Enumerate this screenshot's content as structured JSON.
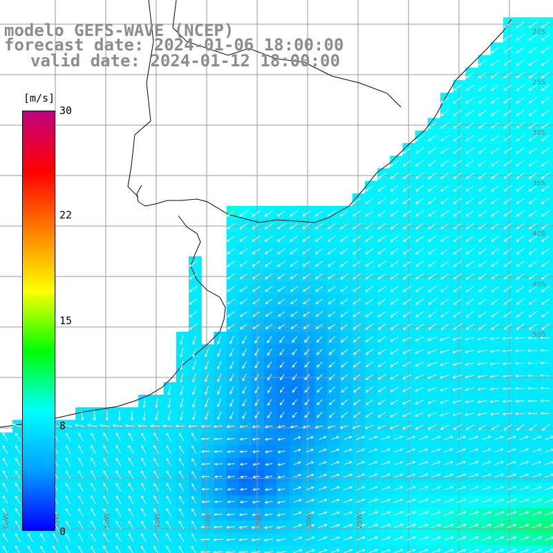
{
  "title": {
    "model": "modelo GEFS-WAVE (NCEP)",
    "forecast": "forecast date: 2024-01-06 18:00:00",
    "valid": "valid date: 2024-01-12 18:00:00"
  },
  "colorbar": {
    "unit": "[m/s]",
    "ticks": [
      "30",
      "22",
      "15",
      "8",
      "0"
    ],
    "range": [
      0,
      30
    ],
    "colors": [
      "#0000ff",
      "#00a0ff",
      "#00ffff",
      "#00ff00",
      "#ffff00",
      "#ff8000",
      "#ff0000",
      "#c00080"
    ]
  },
  "map": {
    "land_color": "#ffffff",
    "grid_color": "#999999",
    "coast_color": "#000000",
    "arrow_color": "#ffffff",
    "lon_labels": [
      "60W",
      "55W",
      "50W",
      "45W",
      "40W",
      "35W",
      "30W",
      "25W"
    ],
    "lat_labels": [
      "20S",
      "25S",
      "30S",
      "35S",
      "40S",
      "45S",
      "50S"
    ]
  },
  "chart_data": {
    "type": "heatmap",
    "variable": "wind speed with direction arrows",
    "colorbar_range": [
      0,
      30
    ],
    "colorbar_unit": "m/s"
  }
}
